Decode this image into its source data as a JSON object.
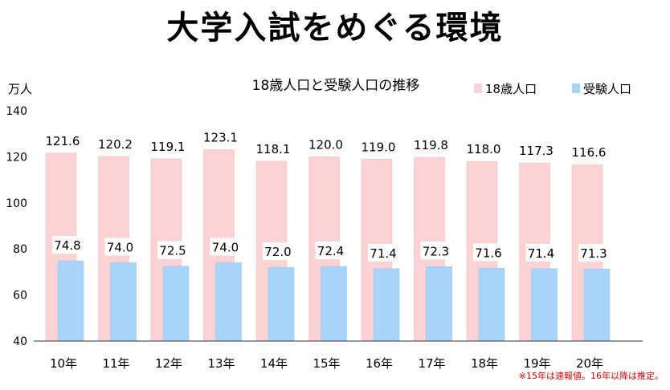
{
  "page_title": "大学入試をめぐる環境",
  "note": "※15年は速報値。16年以降は推定。",
  "colors": {
    "series1": "#fcd3d4",
    "series2": "#a8d4fa",
    "axis": "#333333"
  },
  "chart_data": {
    "type": "bar",
    "title": "18歳人口と受験人口の推移",
    "ylabel": "万人",
    "xlabel": "",
    "ylim": [
      40,
      140
    ],
    "yticks": [
      40,
      60,
      80,
      100,
      120,
      140
    ],
    "grid": false,
    "legend": "top-right",
    "categories": [
      "10年",
      "11年",
      "12年",
      "13年",
      "14年",
      "15年",
      "16年",
      "17年",
      "18年",
      "19年",
      "20年"
    ],
    "series": [
      {
        "name": "18歳人口",
        "values": [
          121.6,
          120.2,
          119.1,
          123.1,
          118.1,
          120.0,
          119.0,
          119.8,
          118.0,
          117.3,
          116.6
        ]
      },
      {
        "name": "受験人口",
        "values": [
          74.8,
          74.0,
          72.5,
          74.0,
          72.0,
          72.4,
          71.4,
          72.3,
          71.6,
          71.4,
          71.3
        ]
      }
    ]
  }
}
